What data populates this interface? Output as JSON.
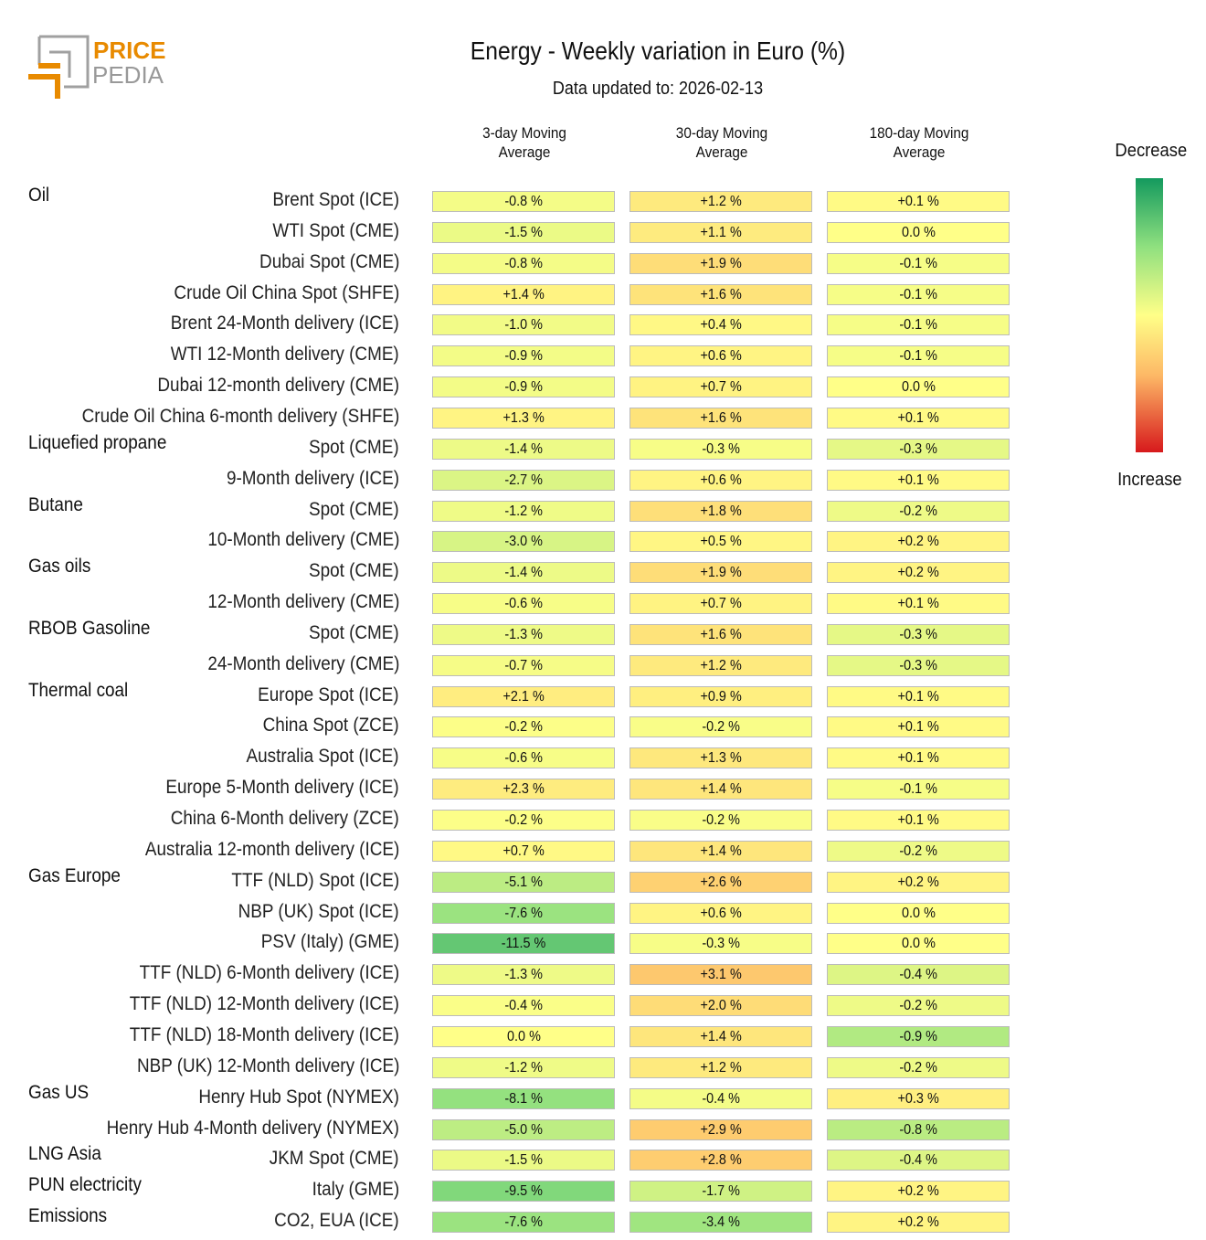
{
  "logo": {
    "text_top": "PRICE",
    "text_bottom": "PEDIA",
    "brand_color": "#e88a00"
  },
  "chart_data": {
    "type": "heatmap",
    "title": "Energy - Weekly variation in Euro (%)",
    "subtitle": "Data updated to: 2026-02-13",
    "columns": [
      "3-day Moving Average",
      "30-day Moving Average",
      "180-day Moving Average"
    ],
    "column_lines": [
      [
        "3-day Moving",
        "Average"
      ],
      [
        "30-day Moving",
        "Average"
      ],
      [
        "180-day Moving",
        "Average"
      ]
    ],
    "legend": {
      "top": "Decrease",
      "bottom": "Increase",
      "colors": [
        "#149a5e",
        "#ffff88",
        "#d7191c"
      ]
    },
    "unit": "%",
    "rows": [
      {
        "group": "Oil",
        "label": "Brent Spot (ICE)",
        "values": [
          -0.8,
          1.2,
          0.1
        ]
      },
      {
        "group": "",
        "label": "WTI Spot (CME)",
        "values": [
          -1.5,
          1.1,
          0.0
        ]
      },
      {
        "group": "",
        "label": "Dubai Spot (CME)",
        "values": [
          -0.8,
          1.9,
          -0.1
        ]
      },
      {
        "group": "",
        "label": "Crude Oil China Spot (SHFE)",
        "values": [
          1.4,
          1.6,
          -0.1
        ]
      },
      {
        "group": "",
        "label": "Brent 24-Month delivery (ICE)",
        "values": [
          -1.0,
          0.4,
          -0.1
        ]
      },
      {
        "group": "",
        "label": "WTI 12-Month delivery (CME)",
        "values": [
          -0.9,
          0.6,
          -0.1
        ]
      },
      {
        "group": "",
        "label": "Dubai 12-month delivery (CME)",
        "values": [
          -0.9,
          0.7,
          0.0
        ]
      },
      {
        "group": "",
        "label": "Crude Oil China 6-month delivery (SHFE)",
        "values": [
          1.3,
          1.6,
          0.1
        ]
      },
      {
        "group": "Liquefied propane",
        "label": "Spot (CME)",
        "values": [
          -1.4,
          -0.3,
          -0.3
        ]
      },
      {
        "group": "",
        "label": "9-Month delivery (ICE)",
        "values": [
          -2.7,
          0.6,
          0.1
        ]
      },
      {
        "group": "Butane",
        "label": "Spot (CME)",
        "values": [
          -1.2,
          1.8,
          -0.2
        ]
      },
      {
        "group": "",
        "label": "10-Month delivery (CME)",
        "values": [
          -3.0,
          0.5,
          0.2
        ]
      },
      {
        "group": "Gas oils",
        "label": "Spot (CME)",
        "values": [
          -1.4,
          1.9,
          0.2
        ]
      },
      {
        "group": "",
        "label": "12-Month delivery (CME)",
        "values": [
          -0.6,
          0.7,
          0.1
        ]
      },
      {
        "group": "RBOB Gasoline",
        "label": "Spot (CME)",
        "values": [
          -1.3,
          1.6,
          -0.3
        ]
      },
      {
        "group": "",
        "label": "24-Month delivery (CME)",
        "values": [
          -0.7,
          1.2,
          -0.3
        ]
      },
      {
        "group": "Thermal coal",
        "label": "Europe Spot (ICE)",
        "values": [
          2.1,
          0.9,
          0.1
        ]
      },
      {
        "group": "",
        "label": "China Spot (ZCE)",
        "values": [
          -0.2,
          -0.2,
          0.1
        ]
      },
      {
        "group": "",
        "label": "Australia Spot (ICE)",
        "values": [
          -0.6,
          1.3,
          0.1
        ]
      },
      {
        "group": "",
        "label": "Europe 5-Month delivery (ICE)",
        "values": [
          2.3,
          1.4,
          -0.1
        ]
      },
      {
        "group": "",
        "label": "China 6-Month delivery (ZCE)",
        "values": [
          -0.2,
          -0.2,
          0.1
        ]
      },
      {
        "group": "",
        "label": "Australia 12-month delivery (ICE)",
        "values": [
          0.7,
          1.4,
          -0.2
        ]
      },
      {
        "group": "Gas Europe",
        "label": "TTF (NLD) Spot (ICE)",
        "values": [
          -5.1,
          2.6,
          0.2
        ]
      },
      {
        "group": "",
        "label": "NBP (UK) Spot (ICE)",
        "values": [
          -7.6,
          0.6,
          0.0
        ]
      },
      {
        "group": "",
        "label": "PSV (Italy) (GME)",
        "values": [
          -11.5,
          -0.3,
          0.0
        ]
      },
      {
        "group": "",
        "label": "TTF (NLD) 6-Month delivery (ICE)",
        "values": [
          -1.3,
          3.1,
          -0.4
        ]
      },
      {
        "group": "",
        "label": "TTF (NLD) 12-Month delivery (ICE)",
        "values": [
          -0.4,
          2.0,
          -0.2
        ]
      },
      {
        "group": "",
        "label": "TTF (NLD) 18-Month delivery (ICE)",
        "values": [
          0.0,
          1.4,
          -0.9
        ]
      },
      {
        "group": "",
        "label": "NBP (UK) 12-Month delivery (ICE)",
        "values": [
          -1.2,
          1.2,
          -0.2
        ]
      },
      {
        "group": "Gas US",
        "label": "Henry Hub Spot (NYMEX)",
        "values": [
          -8.1,
          -0.4,
          0.3
        ]
      },
      {
        "group": "",
        "label": "Henry Hub 4-Month delivery (NYMEX)",
        "values": [
          -5.0,
          2.9,
          -0.8
        ]
      },
      {
        "group": "LNG Asia",
        "label": "JKM Spot (CME)",
        "values": [
          -1.5,
          2.8,
          -0.4
        ]
      },
      {
        "group": "PUN electricity",
        "label": "Italy (GME)",
        "values": [
          -9.5,
          -1.7,
          0.2
        ]
      },
      {
        "group": "Emissions",
        "label": "CO2, EUA (ICE)",
        "values": [
          -7.6,
          -3.4,
          0.2
        ]
      }
    ]
  }
}
